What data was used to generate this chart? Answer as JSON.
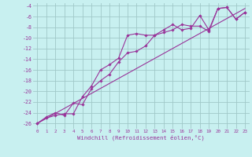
{
  "xlabel": "Windchill (Refroidissement éolien,°C)",
  "bg_color": "#c8f0f0",
  "grid_color": "#a0c8c8",
  "line_color": "#993399",
  "xlim": [
    -0.5,
    23.5
  ],
  "ylim": [
    -27,
    -3.5
  ],
  "xticks": [
    0,
    1,
    2,
    3,
    4,
    5,
    6,
    7,
    8,
    9,
    10,
    11,
    12,
    13,
    14,
    15,
    16,
    17,
    18,
    19,
    20,
    21,
    22,
    23
  ],
  "yticks": [
    -4,
    -6,
    -8,
    -10,
    -12,
    -14,
    -16,
    -18,
    -20,
    -22,
    -24,
    -26
  ],
  "line1_x": [
    0,
    1,
    2,
    3,
    4,
    5,
    6,
    7,
    8,
    9,
    10,
    11,
    12,
    13,
    14,
    15,
    16,
    17,
    18,
    19,
    20,
    21,
    22,
    23
  ],
  "line1_y": [
    -26,
    -25.0,
    -24.5,
    -24.2,
    -24.2,
    -21.0,
    -19.0,
    -16.0,
    -15.0,
    -13.8,
    -9.5,
    -9.2,
    -9.5,
    -9.5,
    -9.0,
    -8.5,
    -7.5,
    -7.8,
    -7.8,
    -8.8,
    -4.5,
    -4.3,
    -6.5,
    -5.2
  ],
  "line2_x": [
    0,
    1,
    2,
    3,
    4,
    5,
    6,
    7,
    8,
    9,
    10,
    11,
    12,
    13,
    14,
    15,
    16,
    17,
    18,
    19,
    20,
    21,
    22,
    23
  ],
  "line2_y": [
    -26,
    -24.8,
    -24.0,
    -24.5,
    -22.2,
    -22.5,
    -19.5,
    -18.0,
    -16.8,
    -14.5,
    -12.8,
    -12.5,
    -11.5,
    -9.5,
    -8.5,
    -7.5,
    -8.5,
    -8.2,
    -5.8,
    -8.5,
    -4.5,
    -4.3,
    -6.5,
    -5.2
  ],
  "line3_x": [
    0,
    23
  ],
  "line3_y": [
    -26,
    -4.5
  ]
}
